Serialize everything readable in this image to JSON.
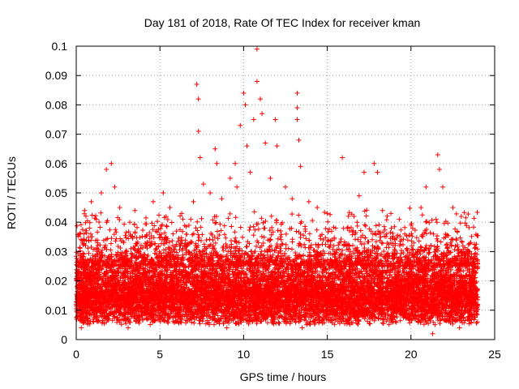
{
  "chart_data": {
    "type": "scatter",
    "title": "Day 181 of 2018, Rate Of TEC Index for receiver kman",
    "xlabel": "GPS time / hours",
    "ylabel": "ROTI / TECUs",
    "xlim": [
      0,
      25
    ],
    "ylim": [
      0,
      0.1
    ],
    "x_ticks": [
      0,
      5,
      10,
      15,
      20,
      25
    ],
    "y_ticks": [
      0,
      0.01,
      0.02,
      0.03,
      0.04,
      0.05,
      0.06,
      0.07,
      0.08,
      0.09,
      0.1
    ],
    "x_tick_labels": [
      "0",
      "5",
      "10",
      "15",
      "20",
      "25"
    ],
    "y_tick_labels": [
      "0",
      "0.01",
      "0.02",
      "0.03",
      "0.04",
      "0.05",
      "0.06",
      "0.07",
      "0.08",
      "0.09",
      "0.1"
    ],
    "grid": true,
    "marker": "+",
    "series": [
      {
        "name": "ROTI",
        "color": "#ff0000",
        "x_range": [
          0,
          24
        ],
        "typical_range": [
          0.005,
          0.03
        ],
        "points": [
          [
            0.2,
            0.036
          ],
          [
            0.5,
            0.044
          ],
          [
            0.9,
            0.047
          ],
          [
            1.2,
            0.041
          ],
          [
            1.5,
            0.05
          ],
          [
            1.8,
            0.058
          ],
          [
            2.1,
            0.06
          ],
          [
            2.3,
            0.052
          ],
          [
            2.6,
            0.045
          ],
          [
            3.2,
            0.04
          ],
          [
            3.5,
            0.044
          ],
          [
            4.6,
            0.047
          ],
          [
            5.2,
            0.05
          ],
          [
            5.6,
            0.045
          ],
          [
            6.3,
            0.043
          ],
          [
            7.0,
            0.047
          ],
          [
            7.2,
            0.087
          ],
          [
            7.3,
            0.082
          ],
          [
            7.3,
            0.071
          ],
          [
            7.4,
            0.062
          ],
          [
            7.6,
            0.053
          ],
          [
            8.0,
            0.05
          ],
          [
            8.3,
            0.065
          ],
          [
            8.4,
            0.06
          ],
          [
            8.7,
            0.048
          ],
          [
            9.2,
            0.055
          ],
          [
            9.5,
            0.06
          ],
          [
            9.6,
            0.052
          ],
          [
            9.8,
            0.073
          ],
          [
            10.0,
            0.084
          ],
          [
            10.1,
            0.08
          ],
          [
            10.2,
            0.066
          ],
          [
            10.4,
            0.057
          ],
          [
            10.6,
            0.075
          ],
          [
            10.8,
            0.099
          ],
          [
            10.8,
            0.088
          ],
          [
            11.0,
            0.082
          ],
          [
            11.1,
            0.077
          ],
          [
            11.3,
            0.067
          ],
          [
            11.6,
            0.055
          ],
          [
            11.9,
            0.075
          ],
          [
            12.0,
            0.066
          ],
          [
            12.5,
            0.052
          ],
          [
            12.9,
            0.048
          ],
          [
            13.2,
            0.084
          ],
          [
            13.2,
            0.079
          ],
          [
            13.2,
            0.075
          ],
          [
            13.3,
            0.068
          ],
          [
            13.4,
            0.059
          ],
          [
            13.9,
            0.047
          ],
          [
            14.4,
            0.045
          ],
          [
            15.0,
            0.043
          ],
          [
            15.5,
            0.038
          ],
          [
            15.9,
            0.062
          ],
          [
            16.6,
            0.042
          ],
          [
            16.9,
            0.049
          ],
          [
            17.2,
            0.057
          ],
          [
            17.8,
            0.06
          ],
          [
            18.0,
            0.057
          ],
          [
            18.3,
            0.044
          ],
          [
            18.8,
            0.043
          ],
          [
            19.3,
            0.041
          ],
          [
            20.0,
            0.039
          ],
          [
            20.6,
            0.045
          ],
          [
            20.9,
            0.052
          ],
          [
            21.5,
            0.041
          ],
          [
            21.6,
            0.063
          ],
          [
            21.7,
            0.058
          ],
          [
            21.9,
            0.052
          ],
          [
            22.5,
            0.045
          ],
          [
            23.0,
            0.042
          ],
          [
            23.5,
            0.03
          ],
          [
            23.8,
            0.029
          ],
          [
            0.3,
            0.004
          ],
          [
            3.1,
            0.004
          ],
          [
            9.0,
            0.004
          ],
          [
            13.5,
            0.004
          ],
          [
            21.3,
            0.002
          ],
          [
            22.9,
            0.004
          ]
        ]
      }
    ]
  }
}
